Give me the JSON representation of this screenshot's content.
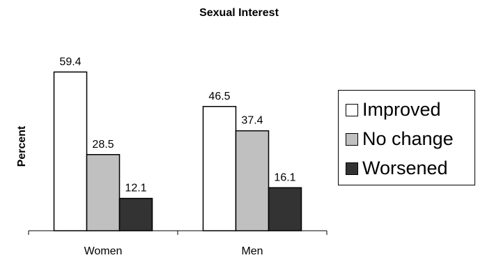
{
  "chart_data": {
    "type": "bar",
    "title": "Sexual Interest",
    "ylabel": "Percent",
    "xlabel": "",
    "categories": [
      "Women",
      "Men"
    ],
    "series": [
      {
        "name": "Improved",
        "values": [
          59.4,
          46.5
        ],
        "color": "#ffffff"
      },
      {
        "name": "No change",
        "values": [
          28.5,
          37.4
        ],
        "color": "#c0c0c0"
      },
      {
        "name": "Worsened",
        "values": [
          12.1,
          16.1
        ],
        "color": "#333333"
      }
    ],
    "ylim": [
      0,
      60
    ],
    "grid": false,
    "legend": "right"
  }
}
